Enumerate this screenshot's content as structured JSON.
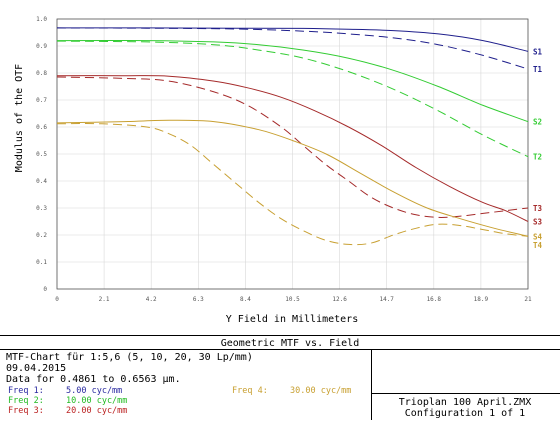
{
  "chart_data": {
    "type": "line",
    "title": "Geometric MTF vs. Field",
    "xlabel": "Y Field in Millimeters",
    "ylabel": "Modulus of the OTF",
    "xlim": [
      0,
      21
    ],
    "ylim": [
      0,
      1.0
    ],
    "x_ticks": [
      "0",
      "2.1",
      "4.2",
      "6.3",
      "8.4",
      "10.5",
      "12.6",
      "14.7",
      "16.8",
      "18.9",
      "21"
    ],
    "y_ticks": [
      "0",
      "0.1",
      "0.2",
      "0.3",
      "0.4",
      "0.5",
      "0.6",
      "0.7",
      "0.8",
      "0.9",
      "1.0"
    ],
    "grid": true,
    "series": [
      {
        "name": "S1",
        "color": "#1f1f8c",
        "dashed": false,
        "points": [
          [
            0,
            0.967
          ],
          [
            4,
            0.967
          ],
          [
            8,
            0.966
          ],
          [
            11,
            0.965
          ],
          [
            13,
            0.962
          ],
          [
            15,
            0.957
          ],
          [
            17,
            0.945
          ],
          [
            19,
            0.92
          ],
          [
            21,
            0.88
          ]
        ]
      },
      {
        "name": "T1",
        "color": "#1f1f8c",
        "dashed": true,
        "points": [
          [
            0,
            0.967
          ],
          [
            4,
            0.966
          ],
          [
            8,
            0.963
          ],
          [
            11,
            0.955
          ],
          [
            13,
            0.945
          ],
          [
            15,
            0.93
          ],
          [
            17,
            0.905
          ],
          [
            19,
            0.865
          ],
          [
            21,
            0.815
          ]
        ]
      },
      {
        "name": "S2",
        "color": "#33cc33",
        "dashed": false,
        "points": [
          [
            0,
            0.92
          ],
          [
            4,
            0.92
          ],
          [
            7,
            0.915
          ],
          [
            9,
            0.905
          ],
          [
            11,
            0.885
          ],
          [
            13,
            0.855
          ],
          [
            15,
            0.81
          ],
          [
            17,
            0.75
          ],
          [
            19,
            0.68
          ],
          [
            21,
            0.62
          ]
        ]
      },
      {
        "name": "T2",
        "color": "#33cc33",
        "dashed": true,
        "points": [
          [
            0,
            0.918
          ],
          [
            4,
            0.915
          ],
          [
            7,
            0.905
          ],
          [
            9,
            0.885
          ],
          [
            11,
            0.855
          ],
          [
            13,
            0.805
          ],
          [
            15,
            0.74
          ],
          [
            17,
            0.66
          ],
          [
            19,
            0.57
          ],
          [
            21,
            0.49
          ]
        ]
      },
      {
        "name": "S3",
        "color": "#a52a2a",
        "dashed": false,
        "points": [
          [
            0,
            0.79
          ],
          [
            3,
            0.79
          ],
          [
            5,
            0.788
          ],
          [
            7,
            0.77
          ],
          [
            8.5,
            0.745
          ],
          [
            10,
            0.71
          ],
          [
            11.5,
            0.66
          ],
          [
            13,
            0.6
          ],
          [
            14.5,
            0.53
          ],
          [
            16,
            0.45
          ],
          [
            17.5,
            0.38
          ],
          [
            19,
            0.32
          ],
          [
            20,
            0.29
          ],
          [
            21,
            0.25
          ]
        ]
      },
      {
        "name": "T3",
        "color": "#a52a2a",
        "dashed": true,
        "points": [
          [
            0,
            0.785
          ],
          [
            3,
            0.78
          ],
          [
            5,
            0.77
          ],
          [
            7,
            0.73
          ],
          [
            8.5,
            0.68
          ],
          [
            10,
            0.6
          ],
          [
            11,
            0.53
          ],
          [
            12,
            0.46
          ],
          [
            13,
            0.4
          ],
          [
            14,
            0.34
          ],
          [
            15,
            0.3
          ],
          [
            16,
            0.275
          ],
          [
            17,
            0.265
          ],
          [
            18,
            0.27
          ],
          [
            19,
            0.28
          ],
          [
            20,
            0.29
          ],
          [
            21,
            0.3
          ]
        ]
      },
      {
        "name": "S4",
        "color": "#c8a032",
        "dashed": false,
        "points": [
          [
            0,
            0.615
          ],
          [
            3,
            0.62
          ],
          [
            5,
            0.625
          ],
          [
            7,
            0.62
          ],
          [
            9,
            0.59
          ],
          [
            10.5,
            0.55
          ],
          [
            12,
            0.5
          ],
          [
            13.5,
            0.43
          ],
          [
            15,
            0.36
          ],
          [
            16.5,
            0.3
          ],
          [
            18,
            0.26
          ],
          [
            19.5,
            0.225
          ],
          [
            21,
            0.195
          ]
        ]
      },
      {
        "name": "T4",
        "color": "#c8a032",
        "dashed": true,
        "points": [
          [
            0,
            0.612
          ],
          [
            2,
            0.612
          ],
          [
            4,
            0.6
          ],
          [
            5,
            0.575
          ],
          [
            6,
            0.53
          ],
          [
            7,
            0.46
          ],
          [
            8,
            0.39
          ],
          [
            9,
            0.32
          ],
          [
            10,
            0.26
          ],
          [
            11,
            0.215
          ],
          [
            12,
            0.18
          ],
          [
            13,
            0.165
          ],
          [
            14,
            0.17
          ],
          [
            15,
            0.2
          ],
          [
            16,
            0.225
          ],
          [
            17,
            0.24
          ],
          [
            18,
            0.235
          ],
          [
            19,
            0.22
          ],
          [
            20,
            0.205
          ],
          [
            21,
            0.195
          ]
        ]
      }
    ]
  },
  "info": {
    "title": "Geometric MTF vs. Field",
    "line1": "MTF-Chart für 1:5,6 (5, 10, 20, 30 Lp/mm)",
    "line2": "09.04.2015",
    "line3": "Data for 0.4861 to 0.6563 µm.",
    "freqs": [
      {
        "label": "Freq 1:",
        "value": "5.00 cyc/mm",
        "color": "#2a2aa0"
      },
      {
        "label": "Freq 2:",
        "value": "10.00 cyc/mm",
        "color": "#22bb22"
      },
      {
        "label": "Freq 3:",
        "value": "20.00 cyc/mm",
        "color": "#bb2222"
      },
      {
        "label": "Freq 4:",
        "value": "30.00 cyc/mm",
        "color": "#c8a032"
      }
    ],
    "file": "Trioplan 100 April.ZMX",
    "config": "Configuration 1 of 1"
  }
}
